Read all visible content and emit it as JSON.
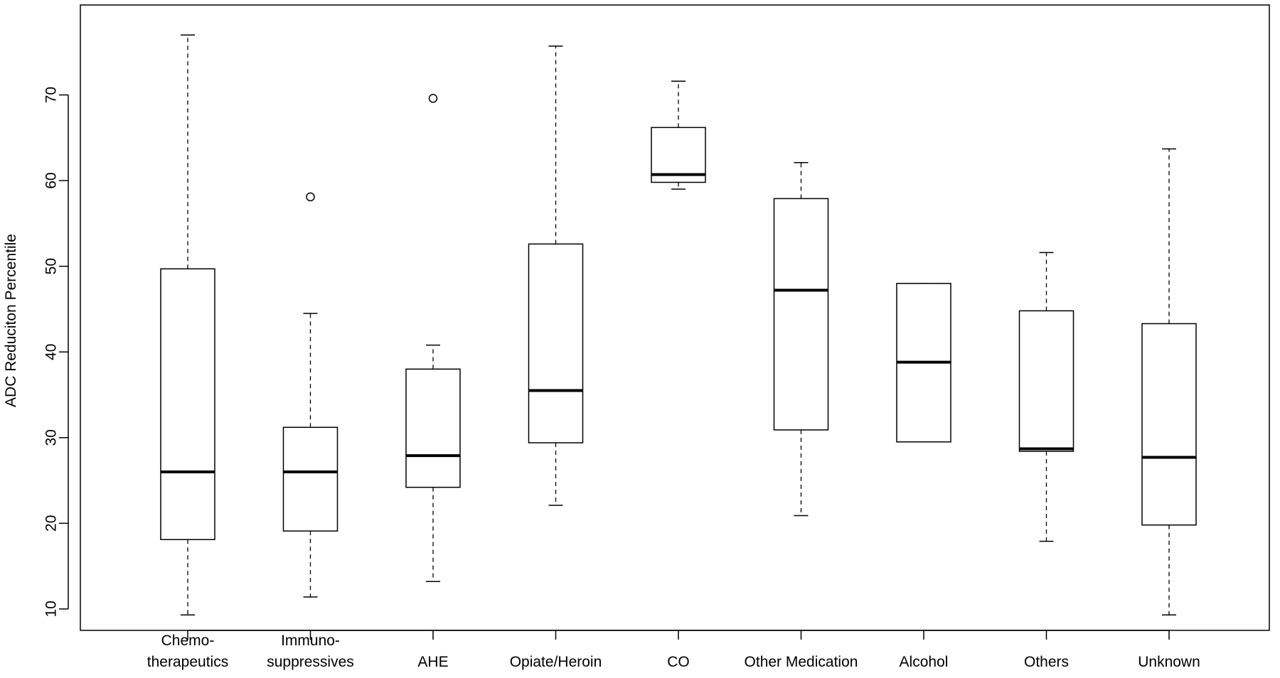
{
  "chart_data": {
    "type": "boxplot",
    "title": "",
    "xlabel": "",
    "ylabel": "ADC Reduciton Percentile",
    "ylim": [
      7.5,
      80.5
    ],
    "yticks": [
      10,
      20,
      30,
      40,
      50,
      60,
      70
    ],
    "grid": false,
    "legend": "none",
    "categories": [
      {
        "label_lines": [
          "Chemo-",
          "therapeutics"
        ],
        "min": 9.3,
        "q1": 18.1,
        "median": 26.0,
        "q3": 49.7,
        "max": 77.0,
        "outliers": []
      },
      {
        "label_lines": [
          "Immuno-",
          "suppressives"
        ],
        "min": 11.4,
        "q1": 19.1,
        "median": 26.0,
        "q3": 31.2,
        "max": 44.5,
        "outliers": [
          58.1
        ]
      },
      {
        "label_lines": [
          "",
          "AHE"
        ],
        "min": 13.2,
        "q1": 24.2,
        "median": 27.9,
        "q3": 38.0,
        "max": 40.8,
        "outliers": [
          69.6
        ]
      },
      {
        "label_lines": [
          "",
          "Opiate/Heroin"
        ],
        "min": 22.1,
        "q1": 29.4,
        "median": 35.5,
        "q3": 52.6,
        "max": 75.7,
        "outliers": []
      },
      {
        "label_lines": [
          "",
          "CO"
        ],
        "min": 59.0,
        "q1": 59.8,
        "median": 60.7,
        "q3": 66.2,
        "max": 71.6,
        "outliers": []
      },
      {
        "label_lines": [
          "",
          "Other Medication"
        ],
        "min": 20.9,
        "q1": 30.9,
        "median": 47.2,
        "q3": 57.9,
        "max": 62.1,
        "outliers": []
      },
      {
        "label_lines": [
          "",
          "Alcohol"
        ],
        "min": 29.5,
        "q1": 29.5,
        "median": 38.8,
        "q3": 48.0,
        "max": 48.0,
        "outliers": []
      },
      {
        "label_lines": [
          "",
          "Others"
        ],
        "min": 17.9,
        "q1": 28.4,
        "median": 28.7,
        "q3": 44.8,
        "max": 51.6,
        "outliers": []
      },
      {
        "label_lines": [
          "",
          "Unknown"
        ],
        "min": 9.3,
        "q1": 19.8,
        "median": 27.7,
        "q3": 43.3,
        "max": 63.7,
        "outliers": []
      }
    ]
  }
}
